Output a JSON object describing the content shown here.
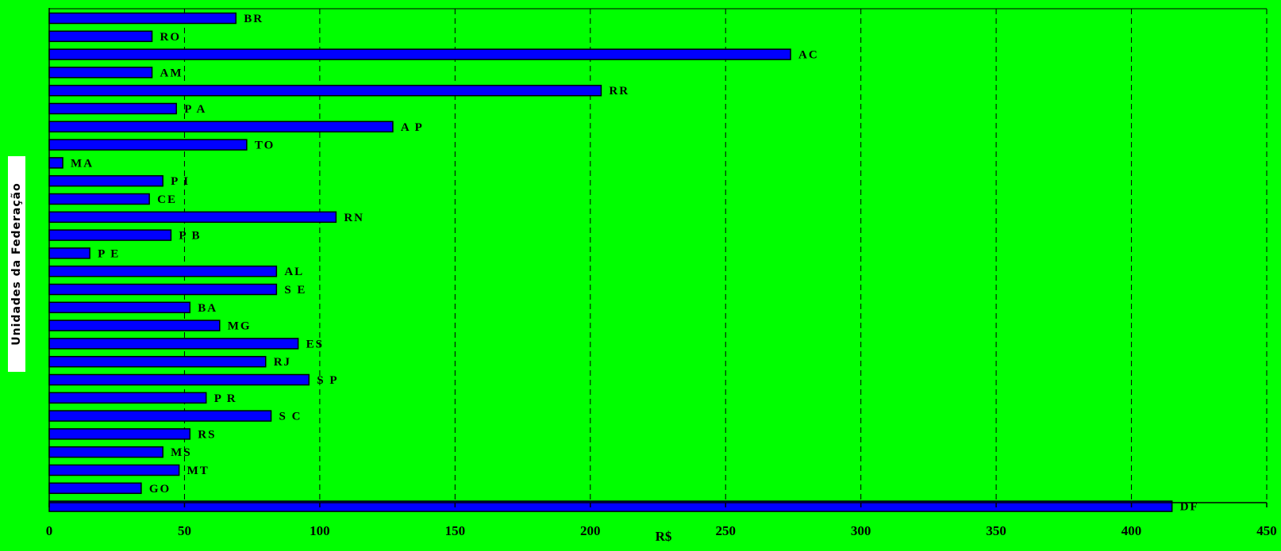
{
  "chart_data": {
    "type": "bar",
    "orientation": "horizontal",
    "title": "",
    "xlabel": "R$",
    "ylabel": "Unidades da Federação",
    "xlim": [
      0,
      450
    ],
    "xticks": [
      "0",
      "50",
      "100",
      "150",
      "200",
      "250",
      "300",
      "350",
      "400",
      "450"
    ],
    "grid": "vertical-dashed",
    "bar_color": "#0000ff",
    "background_color": "#00ff00",
    "categories": [
      "BR",
      "RO",
      "AC",
      "AM",
      "RR",
      "PA",
      "AP",
      "TO",
      "MA",
      "PI",
      "CE",
      "RN",
      "PB",
      "PE",
      "AL",
      "SE",
      "BA",
      "MG",
      "ES",
      "RJ",
      "SP",
      "PR",
      "SC",
      "RS",
      "MS",
      "MT",
      "GO",
      "DF"
    ],
    "display_labels": [
      "BR",
      "RO",
      "AC",
      "AM",
      "RR",
      "P A",
      "A P",
      "TO",
      "MA",
      "P I",
      "CE",
      "RN",
      "P B",
      "P E",
      "AL",
      "S E",
      "BA",
      "MG",
      "ES",
      "RJ",
      "S P",
      "P R",
      "S C",
      "RS",
      "MS",
      "MT",
      "GO",
      "DF"
    ],
    "values": [
      69,
      38,
      274,
      38,
      204,
      47,
      127,
      73,
      5,
      42,
      37,
      106,
      45,
      15,
      84,
      84,
      52,
      63,
      92,
      80,
      96,
      58,
      82,
      52,
      42,
      48,
      34,
      415
    ]
  }
}
